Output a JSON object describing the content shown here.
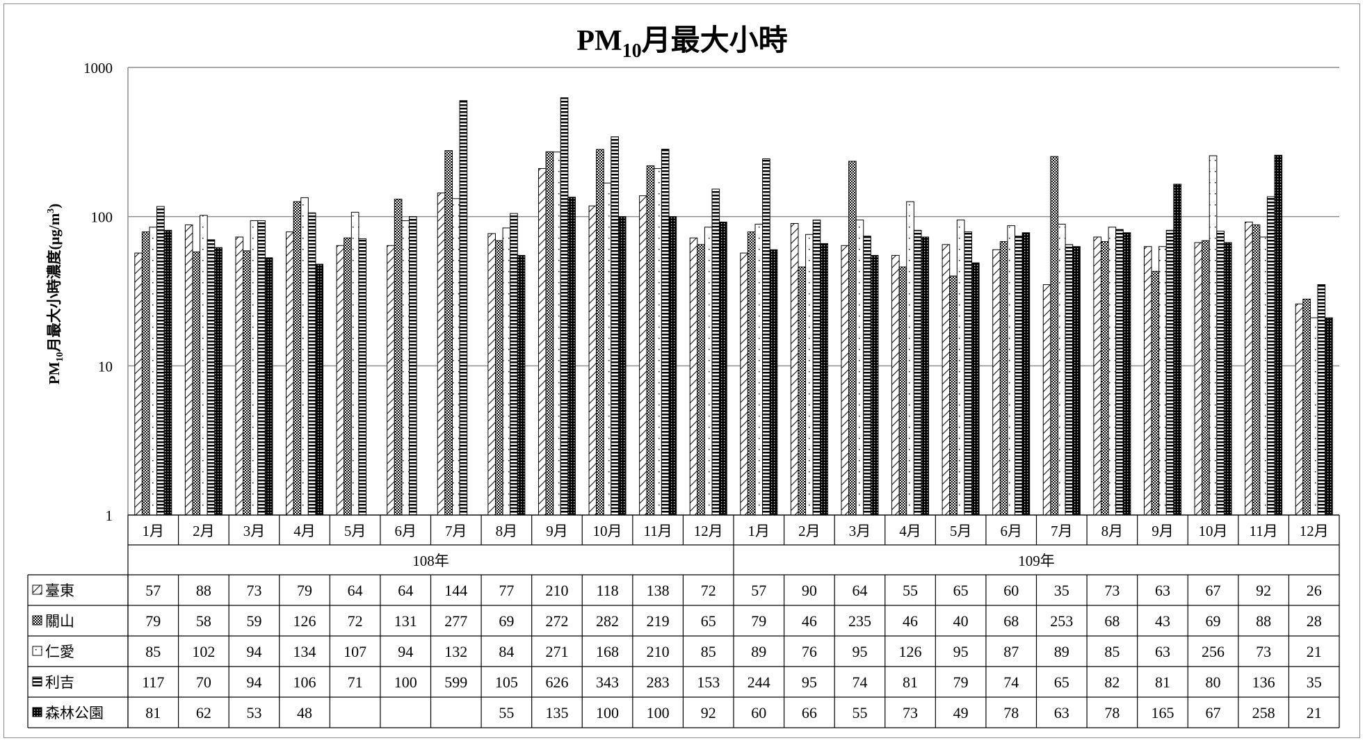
{
  "chart_data": {
    "type": "bar",
    "title": "PM",
    "title_sub": "10",
    "title_suffix": "月最大小時",
    "ylabel": "PM",
    "ylabel_sub": "10",
    "ylabel_suffix": "月最大小時濃度(μg/m",
    "ylabel_sup": "3",
    "ylabel_close": ")",
    "yscale": "log",
    "ylim": [
      1,
      1000
    ],
    "yticks": [
      "1",
      "10",
      "100",
      "1000"
    ],
    "grid": true,
    "categories": [
      "1月",
      "2月",
      "3月",
      "4月",
      "5月",
      "6月",
      "7月",
      "8月",
      "9月",
      "10月",
      "11月",
      "12月",
      "1月",
      "2月",
      "3月",
      "4月",
      "5月",
      "6月",
      "7月",
      "8月",
      "9月",
      "10月",
      "11月",
      "12月"
    ],
    "groups": [
      {
        "label": "108年",
        "count": 12
      },
      {
        "label": "109年",
        "count": 12
      }
    ],
    "series": [
      {
        "name": "臺東",
        "pattern": "diag",
        "values": [
          57,
          88,
          73,
          79,
          64,
          64,
          144,
          77,
          210,
          118,
          138,
          72,
          57,
          90,
          64,
          55,
          65,
          60,
          35,
          73,
          63,
          67,
          92,
          26
        ]
      },
      {
        "name": "關山",
        "pattern": "cross",
        "values": [
          79,
          58,
          59,
          126,
          72,
          131,
          277,
          69,
          272,
          282,
          219,
          65,
          79,
          46,
          235,
          46,
          40,
          68,
          253,
          68,
          43,
          69,
          88,
          28
        ]
      },
      {
        "name": "仁愛",
        "pattern": "dots",
        "values": [
          85,
          102,
          94,
          134,
          107,
          94,
          132,
          84,
          271,
          168,
          210,
          85,
          89,
          76,
          95,
          126,
          95,
          87,
          89,
          85,
          63,
          256,
          73,
          21
        ]
      },
      {
        "name": "利吉",
        "pattern": "hstripe",
        "values": [
          117,
          70,
          94,
          106,
          71,
          100,
          599,
          105,
          626,
          343,
          283,
          153,
          244,
          95,
          74,
          81,
          79,
          74,
          65,
          82,
          81,
          80,
          136,
          35
        ]
      },
      {
        "name": "森林公園",
        "pattern": "dark",
        "values": [
          81,
          62,
          53,
          48,
          null,
          null,
          null,
          55,
          135,
          100,
          100,
          92,
          60,
          66,
          55,
          73,
          49,
          78,
          63,
          78,
          165,
          67,
          258,
          21
        ]
      }
    ]
  }
}
